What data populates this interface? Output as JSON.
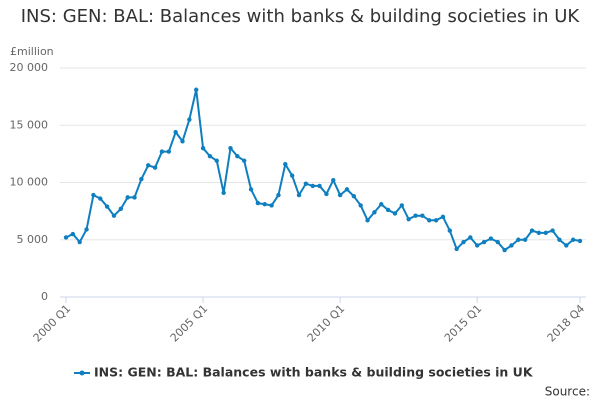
{
  "chart_data": {
    "type": "line",
    "title": "INS: GEN: BAL: Balances with banks & building societies in UK",
    "y_label": "£million",
    "source": "Source:",
    "categories": [
      "2000 Q1",
      null,
      null,
      null,
      null,
      null,
      null,
      null,
      null,
      null,
      null,
      null,
      null,
      null,
      null,
      null,
      null,
      null,
      null,
      null,
      "2005 Q1",
      null,
      null,
      null,
      null,
      null,
      null,
      null,
      null,
      null,
      null,
      null,
      null,
      null,
      null,
      null,
      null,
      null,
      null,
      null,
      "2010 Q1",
      null,
      null,
      null,
      null,
      null,
      null,
      null,
      null,
      null,
      null,
      null,
      null,
      null,
      null,
      null,
      null,
      null,
      null,
      null,
      "2015 Q1",
      null,
      null,
      null,
      null,
      null,
      null,
      null,
      null,
      null,
      null,
      null,
      null,
      null,
      null,
      "2018 Q4"
    ],
    "series": [
      {
        "name": "INS: GEN: BAL: Balances with banks & building societies in UK",
        "color": "#0f7fbf",
        "values": [
          5200,
          5500,
          4800,
          5900,
          8900,
          8600,
          7900,
          7100,
          7700,
          8700,
          8700,
          10300,
          11500,
          11300,
          12700,
          12700,
          14400,
          13600,
          15500,
          18100,
          13000,
          12300,
          11900,
          9100,
          13000,
          12300,
          11900,
          9400,
          8200,
          8100,
          8000,
          8900,
          11600,
          10600,
          8900,
          9900,
          9700,
          9700,
          9000,
          10200,
          8900,
          9400,
          8800,
          8000,
          6700,
          7400,
          8100,
          7600,
          7300,
          8000,
          6800,
          7100,
          7100,
          6700,
          6700,
          7000,
          5800,
          4200,
          4800,
          5200,
          4500,
          4800,
          5100,
          4800,
          4100,
          4500,
          5000,
          5000,
          5800,
          5600,
          5600,
          5800,
          5000,
          4500,
          5000,
          4900
        ]
      }
    ],
    "ylim": [
      0,
      20000
    ],
    "yticks": [
      0,
      {
        "value": 5000,
        "label": "5 000"
      },
      {
        "value": 10000,
        "label": "10 000"
      },
      {
        "value": 15000,
        "label": "15 000"
      },
      {
        "value": 20000,
        "label": "20 000"
      }
    ],
    "grid": true
  }
}
